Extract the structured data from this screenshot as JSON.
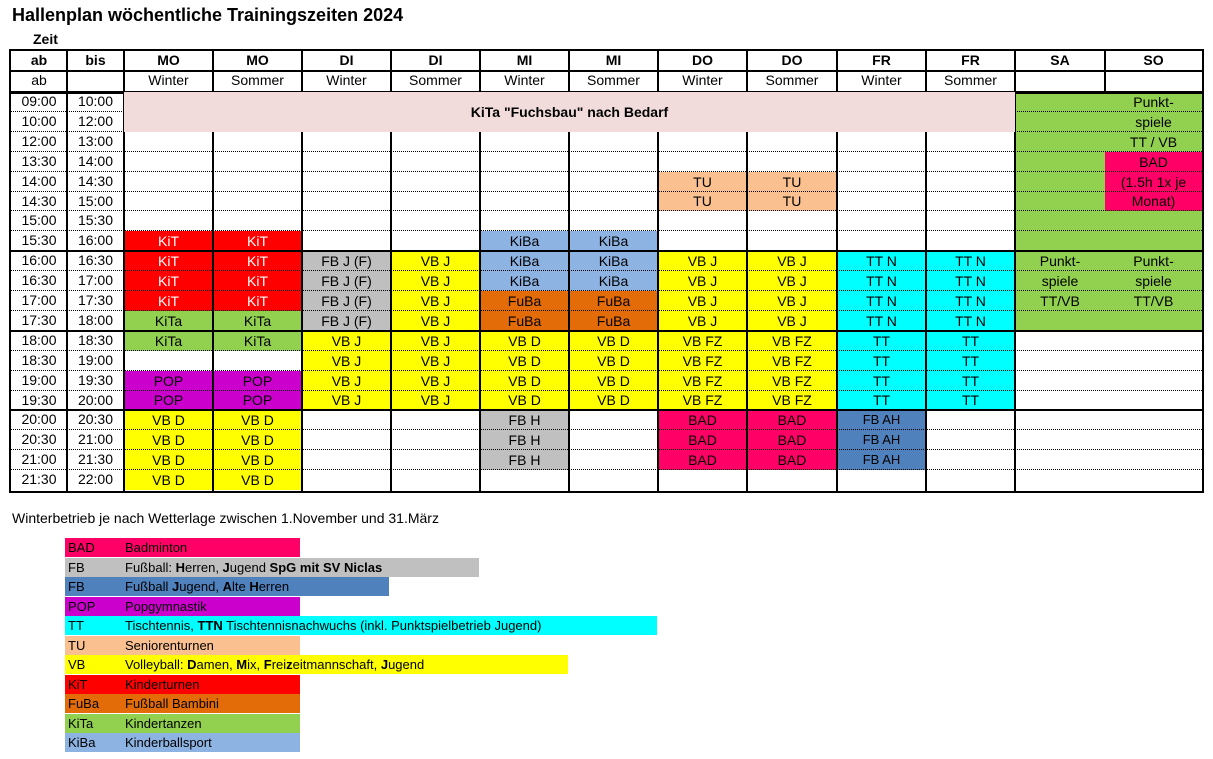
{
  "title": "Hallenplan wöchentliche Trainingszeiten 2024",
  "zeit_label": "Zeit",
  "header": {
    "row1": [
      "ab",
      "bis",
      "MO",
      "MO",
      "DI",
      "DI",
      "MI",
      "MI",
      "DO",
      "DO",
      "FR",
      "FR",
      "SA",
      "SO"
    ],
    "row2": [
      "ab",
      "",
      "Winter",
      "Sommer",
      "Winter",
      "Sommer",
      "Winter",
      "Sommer",
      "Winter",
      "Sommer",
      "Winter",
      "Sommer",
      "",
      ""
    ]
  },
  "times": [
    [
      "09:00",
      "10:00"
    ],
    [
      "10:00",
      "12:00"
    ],
    [
      "12:00",
      "13:00"
    ],
    [
      "13:30",
      "14:00"
    ],
    [
      "14:00",
      "14:30"
    ],
    [
      "14:30",
      "15:00"
    ],
    [
      "15:00",
      "15:30"
    ],
    [
      "15:30",
      "16:00"
    ],
    [
      "16:00",
      "16:30"
    ],
    [
      "16:30",
      "17:00"
    ],
    [
      "17:00",
      "17:30"
    ],
    [
      "17:30",
      "18:00"
    ],
    [
      "18:00",
      "18:30"
    ],
    [
      "18:30",
      "19:00"
    ],
    [
      "19:00",
      "19:30"
    ],
    [
      "19:30",
      "20:00"
    ],
    [
      "20:00",
      "20:30"
    ],
    [
      "20:30",
      "21:00"
    ],
    [
      "21:00",
      "21:30"
    ],
    [
      "21:30",
      "22:00"
    ]
  ],
  "colors": {
    "BAD": "#ff0066",
    "FBH": "#c0c0c0",
    "FBJ": "#4f81bd",
    "POP": "#cc00cc",
    "TT": "#00ffff",
    "TU": "#fac090",
    "VB": "#ffff00",
    "KiT": "#ff0000",
    "FuBa": "#e36c09",
    "KiTa": "#92d050",
    "KiBa": "#8db3e2",
    "FBJF": "#bfbfbf",
    "FBAH": "#4f81bd",
    "SA": "#92d050",
    "KITA_BAND": "#f2dcdb"
  },
  "kita_band": "KiTa \"Fuchsbau\" nach Bedarf",
  "blocks": [
    {
      "row": 7,
      "col": 2,
      "text": "KiT",
      "color": "#ff0000",
      "textColor": "#ffffff"
    },
    {
      "row": 8,
      "col": 2,
      "text": "KiT",
      "color": "#ff0000",
      "textColor": "#ffffff"
    },
    {
      "row": 9,
      "col": 2,
      "text": "KiT",
      "color": "#ff0000",
      "textColor": "#ffffff"
    },
    {
      "row": 10,
      "col": 2,
      "text": "KiT",
      "color": "#ff0000",
      "textColor": "#ffffff"
    },
    {
      "row": 7,
      "col": 3,
      "text": "KiT",
      "color": "#ff0000",
      "textColor": "#ffffff"
    },
    {
      "row": 8,
      "col": 3,
      "text": "KiT",
      "color": "#ff0000",
      "textColor": "#ffffff"
    },
    {
      "row": 9,
      "col": 3,
      "text": "KiT",
      "color": "#ff0000",
      "textColor": "#ffffff"
    },
    {
      "row": 10,
      "col": 3,
      "text": "KiT",
      "color": "#ff0000",
      "textColor": "#ffffff"
    },
    {
      "row": 11,
      "col": 2,
      "text": "KiTa",
      "color": "#92d050"
    },
    {
      "row": 12,
      "col": 2,
      "text": "KiTa",
      "color": "#92d050"
    },
    {
      "row": 11,
      "col": 3,
      "text": "KiTa",
      "color": "#92d050"
    },
    {
      "row": 12,
      "col": 3,
      "text": "KiTa",
      "color": "#92d050"
    },
    {
      "row": 14,
      "col": 2,
      "text": "POP",
      "color": "#cc00cc"
    },
    {
      "row": 15,
      "col": 2,
      "text": "POP",
      "color": "#cc00cc"
    },
    {
      "row": 14,
      "col": 3,
      "text": "POP",
      "color": "#cc00cc"
    },
    {
      "row": 15,
      "col": 3,
      "text": "POP",
      "color": "#cc00cc"
    },
    {
      "row": 16,
      "col": 2,
      "text": "VB D",
      "color": "#ffff00"
    },
    {
      "row": 17,
      "col": 2,
      "text": "VB D",
      "color": "#ffff00"
    },
    {
      "row": 18,
      "col": 2,
      "text": "VB D",
      "color": "#ffff00"
    },
    {
      "row": 19,
      "col": 2,
      "text": "VB D",
      "color": "#ffff00"
    },
    {
      "row": 16,
      "col": 3,
      "text": "VB D",
      "color": "#ffff00"
    },
    {
      "row": 17,
      "col": 3,
      "text": "VB D",
      "color": "#ffff00"
    },
    {
      "row": 18,
      "col": 3,
      "text": "VB D",
      "color": "#ffff00"
    },
    {
      "row": 19,
      "col": 3,
      "text": "VB D",
      "color": "#ffff00"
    },
    {
      "row": 8,
      "col": 4,
      "text": "FB J (F)",
      "color": "#bfbfbf"
    },
    {
      "row": 9,
      "col": 4,
      "text": "FB J (F)",
      "color": "#bfbfbf"
    },
    {
      "row": 10,
      "col": 4,
      "text": "FB J (F)",
      "color": "#bfbfbf"
    },
    {
      "row": 11,
      "col": 4,
      "text": "FB J (F)",
      "color": "#bfbfbf"
    },
    {
      "row": 12,
      "col": 4,
      "text": "VB J",
      "color": "#ffff00"
    },
    {
      "row": 13,
      "col": 4,
      "text": "VB J",
      "color": "#ffff00"
    },
    {
      "row": 14,
      "col": 4,
      "text": "VB J",
      "color": "#ffff00"
    },
    {
      "row": 15,
      "col": 4,
      "text": "VB J",
      "color": "#ffff00"
    },
    {
      "row": 8,
      "col": 5,
      "text": "VB J",
      "color": "#ffff00"
    },
    {
      "row": 9,
      "col": 5,
      "text": "VB J",
      "color": "#ffff00"
    },
    {
      "row": 10,
      "col": 5,
      "text": "VB J",
      "color": "#ffff00"
    },
    {
      "row": 11,
      "col": 5,
      "text": "VB J",
      "color": "#ffff00"
    },
    {
      "row": 12,
      "col": 5,
      "text": "VB J",
      "color": "#ffff00"
    },
    {
      "row": 13,
      "col": 5,
      "text": "VB J",
      "color": "#ffff00"
    },
    {
      "row": 14,
      "col": 5,
      "text": "VB J",
      "color": "#ffff00"
    },
    {
      "row": 15,
      "col": 5,
      "text": "VB J",
      "color": "#ffff00"
    },
    {
      "row": 7,
      "col": 6,
      "text": "KiBa",
      "color": "#8db3e2"
    },
    {
      "row": 8,
      "col": 6,
      "text": "KiBa",
      "color": "#8db3e2"
    },
    {
      "row": 9,
      "col": 6,
      "text": "KiBa",
      "color": "#8db3e2"
    },
    {
      "row": 10,
      "col": 6,
      "text": "FuBa",
      "color": "#e36c09"
    },
    {
      "row": 11,
      "col": 6,
      "text": "FuBa",
      "color": "#e36c09"
    },
    {
      "row": 12,
      "col": 6,
      "text": "VB D",
      "color": "#ffff00"
    },
    {
      "row": 13,
      "col": 6,
      "text": "VB D",
      "color": "#ffff00"
    },
    {
      "row": 14,
      "col": 6,
      "text": "VB D",
      "color": "#ffff00"
    },
    {
      "row": 15,
      "col": 6,
      "text": "VB D",
      "color": "#ffff00"
    },
    {
      "row": 16,
      "col": 6,
      "text": "FB H",
      "color": "#c0c0c0"
    },
    {
      "row": 17,
      "col": 6,
      "text": "FB H",
      "color": "#c0c0c0"
    },
    {
      "row": 18,
      "col": 6,
      "text": "FB H",
      "color": "#c0c0c0"
    },
    {
      "row": 7,
      "col": 7,
      "text": "KiBa",
      "color": "#8db3e2"
    },
    {
      "row": 8,
      "col": 7,
      "text": "KiBa",
      "color": "#8db3e2"
    },
    {
      "row": 9,
      "col": 7,
      "text": "KiBa",
      "color": "#8db3e2"
    },
    {
      "row": 10,
      "col": 7,
      "text": "FuBa",
      "color": "#e36c09"
    },
    {
      "row": 11,
      "col": 7,
      "text": "FuBa",
      "color": "#e36c09"
    },
    {
      "row": 12,
      "col": 7,
      "text": "VB D",
      "color": "#ffff00"
    },
    {
      "row": 13,
      "col": 7,
      "text": "VB D",
      "color": "#ffff00"
    },
    {
      "row": 14,
      "col": 7,
      "text": "VB D",
      "color": "#ffff00"
    },
    {
      "row": 15,
      "col": 7,
      "text": "VB D",
      "color": "#ffff00"
    },
    {
      "row": 4,
      "col": 8,
      "text": "TU",
      "color": "#fac090"
    },
    {
      "row": 5,
      "col": 8,
      "text": "TU",
      "color": "#fac090"
    },
    {
      "row": 8,
      "col": 8,
      "text": "VB J",
      "color": "#ffff00"
    },
    {
      "row": 9,
      "col": 8,
      "text": "VB J",
      "color": "#ffff00"
    },
    {
      "row": 10,
      "col": 8,
      "text": "VB J",
      "color": "#ffff00"
    },
    {
      "row": 11,
      "col": 8,
      "text": "VB J",
      "color": "#ffff00"
    },
    {
      "row": 12,
      "col": 8,
      "text": "VB FZ",
      "color": "#ffff00"
    },
    {
      "row": 13,
      "col": 8,
      "text": "VB FZ",
      "color": "#ffff00"
    },
    {
      "row": 14,
      "col": 8,
      "text": "VB FZ",
      "color": "#ffff00"
    },
    {
      "row": 15,
      "col": 8,
      "text": "VB FZ",
      "color": "#ffff00"
    },
    {
      "row": 16,
      "col": 8,
      "text": "BAD",
      "color": "#ff0066"
    },
    {
      "row": 17,
      "col": 8,
      "text": "BAD",
      "color": "#ff0066"
    },
    {
      "row": 18,
      "col": 8,
      "text": "BAD",
      "color": "#ff0066"
    },
    {
      "row": 4,
      "col": 9,
      "text": "TU",
      "color": "#fac090"
    },
    {
      "row": 5,
      "col": 9,
      "text": "TU",
      "color": "#fac090"
    },
    {
      "row": 8,
      "col": 9,
      "text": "VB J",
      "color": "#ffff00"
    },
    {
      "row": 9,
      "col": 9,
      "text": "VB J",
      "color": "#ffff00"
    },
    {
      "row": 10,
      "col": 9,
      "text": "VB J",
      "color": "#ffff00"
    },
    {
      "row": 11,
      "col": 9,
      "text": "VB J",
      "color": "#ffff00"
    },
    {
      "row": 12,
      "col": 9,
      "text": "VB FZ",
      "color": "#ffff00"
    },
    {
      "row": 13,
      "col": 9,
      "text": "VB FZ",
      "color": "#ffff00"
    },
    {
      "row": 14,
      "col": 9,
      "text": "VB FZ",
      "color": "#ffff00"
    },
    {
      "row": 15,
      "col": 9,
      "text": "VB FZ",
      "color": "#ffff00"
    },
    {
      "row": 16,
      "col": 9,
      "text": "BAD",
      "color": "#ff0066"
    },
    {
      "row": 17,
      "col": 9,
      "text": "BAD",
      "color": "#ff0066"
    },
    {
      "row": 18,
      "col": 9,
      "text": "BAD",
      "color": "#ff0066"
    },
    {
      "row": 8,
      "col": 10,
      "text": "TT N",
      "color": "#00ffff"
    },
    {
      "row": 9,
      "col": 10,
      "text": "TT N",
      "color": "#00ffff"
    },
    {
      "row": 10,
      "col": 10,
      "text": "TT N",
      "color": "#00ffff"
    },
    {
      "row": 11,
      "col": 10,
      "text": "TT N",
      "color": "#00ffff"
    },
    {
      "row": 12,
      "col": 10,
      "text": "TT",
      "color": "#00ffff"
    },
    {
      "row": 13,
      "col": 10,
      "text": "TT",
      "color": "#00ffff"
    },
    {
      "row": 14,
      "col": 10,
      "text": "TT",
      "color": "#00ffff"
    },
    {
      "row": 15,
      "col": 10,
      "text": "TT",
      "color": "#00ffff"
    },
    {
      "row": 16,
      "col": 10,
      "text": "FB AH",
      "color": "#4f81bd",
      "small": true
    },
    {
      "row": 17,
      "col": 10,
      "text": "FB AH",
      "color": "#4f81bd",
      "small": true
    },
    {
      "row": 18,
      "col": 10,
      "text": "FB AH",
      "color": "#4f81bd",
      "small": true
    },
    {
      "row": 8,
      "col": 11,
      "text": "TT N",
      "color": "#00ffff"
    },
    {
      "row": 9,
      "col": 11,
      "text": "TT N",
      "color": "#00ffff"
    },
    {
      "row": 10,
      "col": 11,
      "text": "TT N",
      "color": "#00ffff"
    },
    {
      "row": 11,
      "col": 11,
      "text": "TT N",
      "color": "#00ffff"
    },
    {
      "row": 12,
      "col": 11,
      "text": "TT",
      "color": "#00ffff"
    },
    {
      "row": 13,
      "col": 11,
      "text": "TT",
      "color": "#00ffff"
    },
    {
      "row": 14,
      "col": 11,
      "text": "TT",
      "color": "#00ffff"
    },
    {
      "row": 15,
      "col": 11,
      "text": "TT",
      "color": "#00ffff"
    }
  ],
  "sa_blocks": [
    {
      "rows": [
        0,
        7
      ],
      "text": "",
      "color": "#92d050"
    },
    {
      "rows": [
        8,
        11
      ],
      "lines": [
        "Punkt-",
        "spiele",
        "TT/VB"
      ],
      "color": "#92d050"
    }
  ],
  "so_blocks": [
    {
      "rows": [
        0,
        2
      ],
      "lines": [
        "Punkt-",
        "spiele",
        "TT / VB"
      ],
      "color": "#92d050"
    },
    {
      "rows": [
        3,
        5
      ],
      "lines": [
        "BAD",
        "(1.5h 1x je",
        "Monat)"
      ],
      "color": "#ff0066"
    },
    {
      "rows": [
        6,
        7
      ],
      "lines": [],
      "color": "#92d050"
    },
    {
      "rows": [
        8,
        11
      ],
      "lines": [
        "Punkt-",
        "spiele",
        "TT/VB"
      ],
      "color": "#92d050"
    }
  ],
  "note": "Winterbetrieb je nach Wetterlage zwischen 1.November und 31.März",
  "legend": [
    {
      "abbr": "BAD",
      "desc_html": "Badminton",
      "color": "#ff0066",
      "width": 235
    },
    {
      "abbr": "FB",
      "desc_html": "Fußball: <b>H</b>erren, <b>J</b>ugend <b>SpG mit SV Niclas</b>",
      "color": "#c0c0c0",
      "width": 414
    },
    {
      "abbr": "FB",
      "desc_html": "Fußball <b>J</b>ugend, <b>A</b>lte <b>H</b>erren",
      "color": "#4f81bd",
      "width": 324
    },
    {
      "abbr": "POP",
      "desc_html": "Popgymnastik",
      "color": "#cc00cc",
      "width": 235
    },
    {
      "abbr": "TT",
      "desc_html": "Tischtennis, <b>TTN</b> Tischtennisnachwuchs (inkl. Punktspielbetrieb Jugend)",
      "color": "#00ffff",
      "width": 592
    },
    {
      "abbr": "TU",
      "desc_html": "Seniorenturnen",
      "color": "#fac090",
      "width": 235
    },
    {
      "abbr": "VB",
      "desc_html": "Volleyball: <b>D</b>amen, <b>M</b>ix, <b>F</b>rei<b>z</b>eitmannschaft, <b>J</b>ugend",
      "color": "#ffff00",
      "width": 503
    },
    {
      "abbr": "KiT",
      "desc_html": "Kinderturnen",
      "color": "#ff0000",
      "width": 235
    },
    {
      "abbr": "FuBa",
      "desc_html": "Fußball Bambini",
      "color": "#e36c09",
      "width": 235
    },
    {
      "abbr": "KiTa",
      "desc_html": "Kindertanzen",
      "color": "#92d050",
      "width": 235
    },
    {
      "abbr": "KiBa",
      "desc_html": "Kinderballsport",
      "color": "#8db3e2",
      "width": 235
    }
  ]
}
